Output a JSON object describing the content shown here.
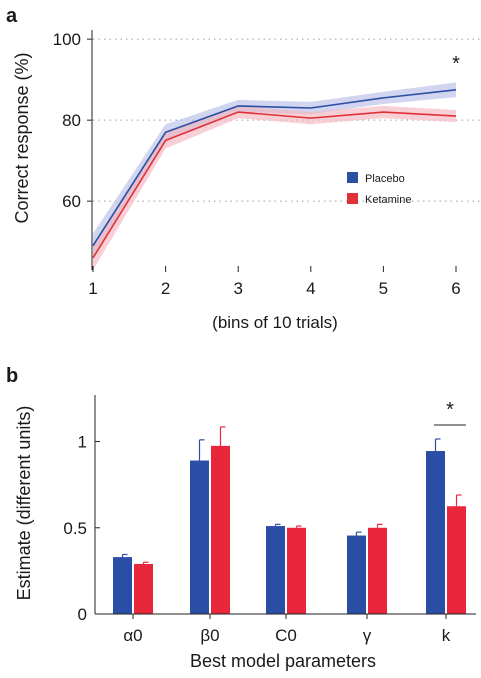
{
  "chart_data": [
    {
      "panel_label": "a",
      "type": "line",
      "xlabel": "(bins of 10 trials)",
      "ylabel": "Correct response (%)",
      "x": [
        1,
        2,
        3,
        4,
        5,
        6
      ],
      "xlim": [
        1,
        6
      ],
      "ylim": [
        43,
        103
      ],
      "yticks": [
        60,
        80,
        100
      ],
      "grid": "horizontal dotted",
      "legend_position": "right",
      "series": [
        {
          "name": "Placebo",
          "color": "#2b4fa3",
          "band_color": "#b8bfe6",
          "values": [
            49,
            77,
            83.5,
            83,
            85.5,
            87.5
          ],
          "band": [
            3,
            2,
            1.5,
            1.5,
            1.5,
            1.8
          ]
        },
        {
          "name": "Ketamine",
          "color": "#e0303a",
          "band_color": "#f2b5bd",
          "values": [
            46,
            75,
            82,
            80.5,
            82,
            81
          ],
          "band": [
            3,
            2,
            1.5,
            1.5,
            1.5,
            1.5
          ]
        }
      ],
      "annotations": [
        {
          "text": "*",
          "x": 6
        }
      ]
    },
    {
      "panel_label": "b",
      "type": "bar",
      "xlabel": "Best model parameters",
      "ylabel": "Estimate (different units)",
      "categories": [
        "α0",
        "β0",
        "C0",
        "γ",
        "k"
      ],
      "ylim": [
        0,
        1.27
      ],
      "yticks": [
        0,
        0.5,
        1
      ],
      "series": [
        {
          "name": "Placebo",
          "color": "#2a4ea5",
          "values": [
            0.33,
            0.89,
            0.51,
            0.455,
            0.945
          ],
          "errors": [
            0.015,
            0.12,
            0.01,
            0.02,
            0.07
          ]
        },
        {
          "name": "Ketamine",
          "color": "#e8283a",
          "values": [
            0.29,
            0.975,
            0.5,
            0.5,
            0.625
          ],
          "errors": [
            0.01,
            0.11,
            0.01,
            0.02,
            0.065
          ]
        }
      ],
      "annotations": [
        {
          "text": "*",
          "category": "k"
        }
      ]
    }
  ]
}
